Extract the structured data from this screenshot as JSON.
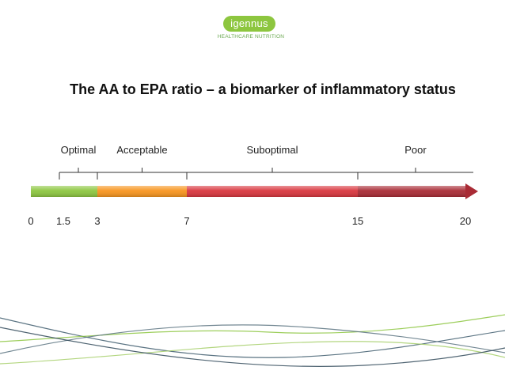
{
  "logo": {
    "name": "igennus",
    "tagline": "HEALTHCARE NUTRITION",
    "pill_color": "#8dc63f",
    "tagline_color": "#6aa84f"
  },
  "title": "The AA to EPA ratio – a biomarker of inflammatory status",
  "scale": {
    "min": 0,
    "max": 20,
    "ticks": [
      {
        "value": 0,
        "label": "0"
      },
      {
        "value": 1.5,
        "label": "1.5"
      },
      {
        "value": 3,
        "label": "3"
      },
      {
        "value": 7,
        "label": "7"
      },
      {
        "value": 15,
        "label": "15"
      },
      {
        "value": 20,
        "label": "20"
      }
    ],
    "segments": [
      {
        "label": "Optimal",
        "from": 0,
        "to": 3,
        "color": "#8cc63f"
      },
      {
        "label": "Acceptable",
        "from": 3,
        "to": 7,
        "color": "#f7941d"
      },
      {
        "label": "Suboptimal",
        "from": 7,
        "to": 15,
        "color": "#d9363e"
      },
      {
        "label": "Poor",
        "from": 15,
        "to": 20,
        "color": "#a92b35"
      }
    ]
  },
  "decor": {
    "wave_colors": [
      "#3d5a6c",
      "#8cc63f",
      "#5a7380",
      "#a6cf6a",
      "#2f4858"
    ]
  }
}
